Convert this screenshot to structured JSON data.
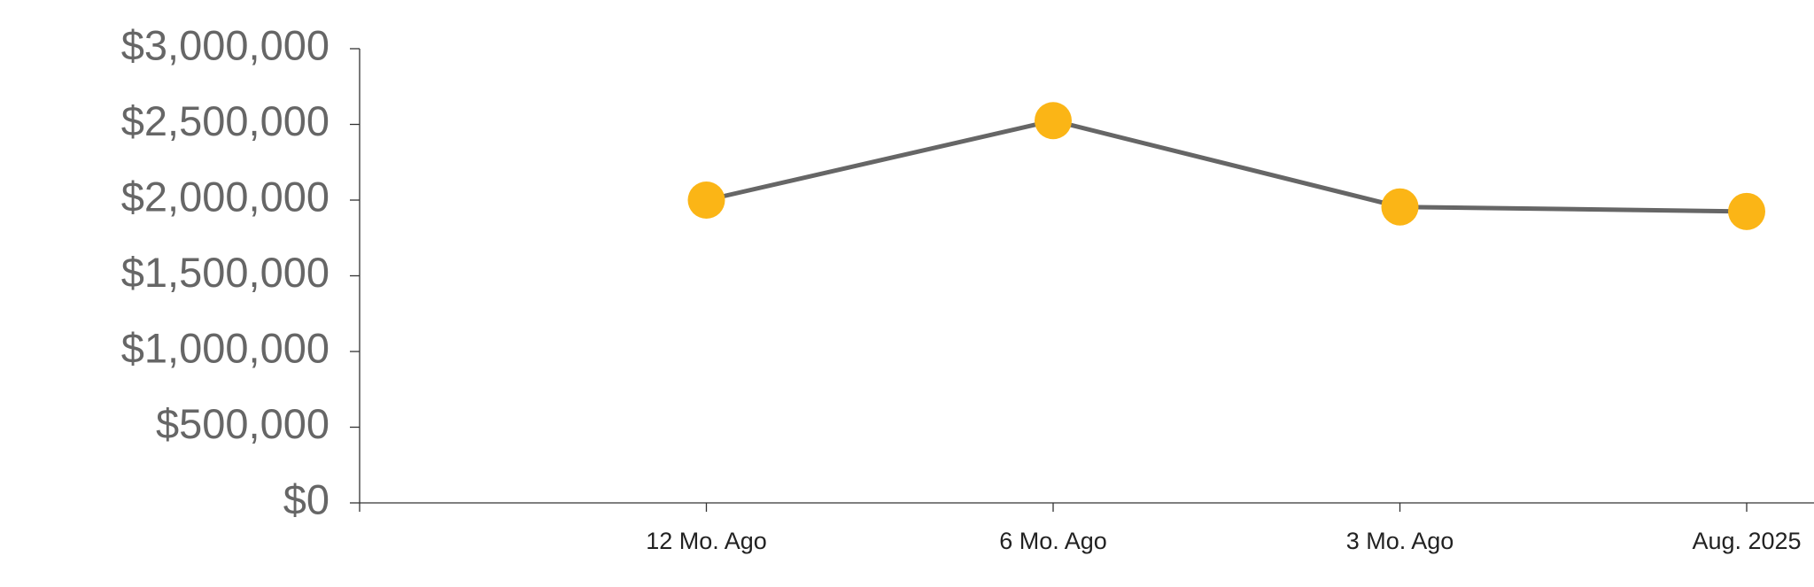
{
  "chart_data": {
    "type": "line",
    "categories": [
      null,
      "12 Mo. Ago",
      "6 Mo. Ago",
      "3 Mo. Ago",
      "Aug. 2025"
    ],
    "series": [
      {
        "color": "#666666",
        "marker_color": "#fbb516",
        "values": [
          null,
          2000000,
          2525000,
          1955000,
          1925000
        ]
      }
    ],
    "ylim": [
      0,
      3000000
    ],
    "yticks": [
      {
        "value": 0,
        "label": "$0"
      },
      {
        "value": 500000,
        "label": "$500,000"
      },
      {
        "value": 1000000,
        "label": "$1,000,000"
      },
      {
        "value": 1500000,
        "label": "$1,500,000"
      },
      {
        "value": 2000000,
        "label": "$2,000,000"
      },
      {
        "value": 2500000,
        "label": "$2,500,000"
      },
      {
        "value": 3000000,
        "label": "$3,000,000"
      }
    ],
    "grid": false
  }
}
